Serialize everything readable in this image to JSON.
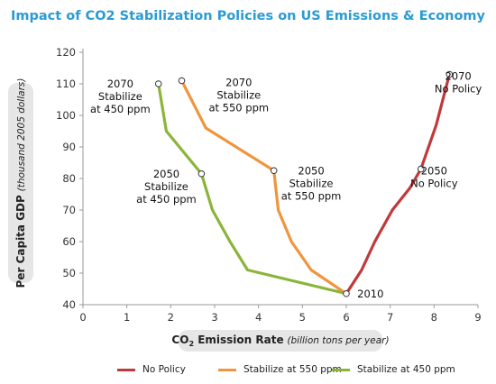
{
  "chart_data": {
    "type": "line",
    "title": "Impact of CO2 Stabilization Policies on US Emissions & Economy",
    "ylabel": {
      "main": "Per Capita GDP",
      "unit": "(thousand 2005 dollars)"
    },
    "xlabel": {
      "prefix": "CO",
      "sub": "2",
      "main": " Emission Rate",
      "unit": "(billion tons per year)"
    },
    "xlim": [
      0,
      9
    ],
    "ylim": [
      40,
      120
    ],
    "xticks": [
      0,
      1,
      2,
      3,
      4,
      5,
      6,
      7,
      8,
      9
    ],
    "yticks": [
      40,
      50,
      60,
      70,
      80,
      90,
      100,
      110,
      120
    ],
    "grid": false,
    "legend_position": "bottom",
    "series": [
      {
        "name": "No Policy",
        "color": "#c0393b",
        "points": [
          [
            6.0,
            43.5
          ],
          [
            6.35,
            51
          ],
          [
            6.65,
            60
          ],
          [
            7.05,
            70
          ],
          [
            7.45,
            77
          ],
          [
            7.7,
            83
          ],
          [
            8.05,
            97
          ],
          [
            8.35,
            113
          ]
        ]
      },
      {
        "name": "Stabilize at 550 ppm",
        "color": "#f0953e",
        "points": [
          [
            6.0,
            43.5
          ],
          [
            5.2,
            51
          ],
          [
            4.75,
            60
          ],
          [
            4.45,
            70
          ],
          [
            4.35,
            82.5
          ],
          [
            2.8,
            96
          ],
          [
            2.25,
            111
          ]
        ]
      },
      {
        "name": "Stabilize at 450 ppm",
        "color": "#8bb53a",
        "points": [
          [
            6.0,
            43.5
          ],
          [
            3.75,
            51
          ],
          [
            3.35,
            60
          ],
          [
            2.95,
            70
          ],
          [
            2.7,
            81.5
          ],
          [
            1.9,
            95
          ],
          [
            1.72,
            110
          ]
        ]
      }
    ],
    "markers": [
      {
        "x": 6.0,
        "y": 43.5
      },
      {
        "x": 7.7,
        "y": 83
      },
      {
        "x": 8.35,
        "y": 113
      },
      {
        "x": 4.35,
        "y": 82.5
      },
      {
        "x": 2.25,
        "y": 111
      },
      {
        "x": 2.7,
        "y": 81.5
      },
      {
        "x": 1.72,
        "y": 110
      }
    ],
    "annotations": [
      {
        "lines": [
          "2010"
        ],
        "x": 6.25,
        "y": 43.5,
        "align": "start"
      },
      {
        "lines": [
          "2050",
          "No Policy"
        ],
        "x": 8.0,
        "y": 80.5,
        "align": "middle"
      },
      {
        "lines": [
          "2070",
          "No Policy"
        ],
        "x": 8.55,
        "y": 110.5,
        "align": "middle"
      },
      {
        "lines": [
          "2050",
          "Stabilize",
          "at 550 ppm"
        ],
        "x": 5.2,
        "y": 78.5,
        "align": "middle"
      },
      {
        "lines": [
          "2070",
          "Stabilize",
          "at 550 ppm"
        ],
        "x": 3.55,
        "y": 106.5,
        "align": "middle"
      },
      {
        "lines": [
          "2050",
          "Stabilize",
          "at 450 ppm"
        ],
        "x": 1.9,
        "y": 77.5,
        "align": "middle"
      },
      {
        "lines": [
          "2070",
          "Stabilize",
          "at 450 ppm"
        ],
        "x": 0.85,
        "y": 106,
        "align": "middle"
      }
    ]
  }
}
